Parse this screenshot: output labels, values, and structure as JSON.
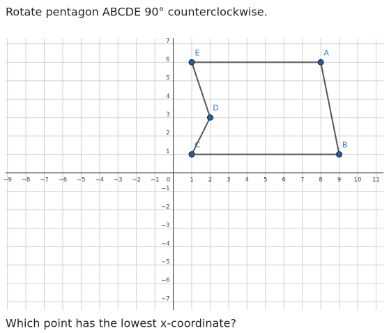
{
  "chart_data": {
    "type": "polygon",
    "title": "Rotate pentagon ABCDE 90° counterclockwise.",
    "question": "Which point has the lowest x-coordinate?",
    "x": [
      8,
      9,
      1,
      2,
      1
    ],
    "values": [
      6,
      1,
      1,
      3,
      6
    ],
    "point_labels": [
      "A",
      "B",
      "C",
      "D",
      "E"
    ],
    "color": "#1f5fa8",
    "line_color": "#555555",
    "grid": true,
    "xlim": [
      -9.1,
      11.4
    ],
    "ylim": [
      -7.45,
      7.3
    ],
    "xticks": [
      {
        "value": -9,
        "label": "−9"
      },
      {
        "value": -8,
        "label": "−8"
      },
      {
        "value": -7,
        "label": "−7"
      },
      {
        "value": -6,
        "label": "−6"
      },
      {
        "value": -5,
        "label": "−5"
      },
      {
        "value": -4,
        "label": "−4"
      },
      {
        "value": -3,
        "label": "−3"
      },
      {
        "value": -2,
        "label": "−2"
      },
      {
        "value": -1,
        "label": "−1"
      },
      0,
      1,
      2,
      3,
      4,
      5,
      6,
      7,
      8,
      9,
      10,
      11
    ],
    "yticks": [
      {
        "value": -7,
        "label": "−7"
      },
      {
        "value": -6,
        "label": "−6"
      },
      {
        "value": -5,
        "label": "−5"
      },
      {
        "value": -4,
        "label": "−4"
      },
      {
        "value": -3,
        "label": "−3"
      },
      {
        "value": -2,
        "label": "−2"
      },
      {
        "value": -1,
        "label": "−1"
      },
      1,
      2,
      3,
      4,
      5,
      6,
      7
    ]
  }
}
